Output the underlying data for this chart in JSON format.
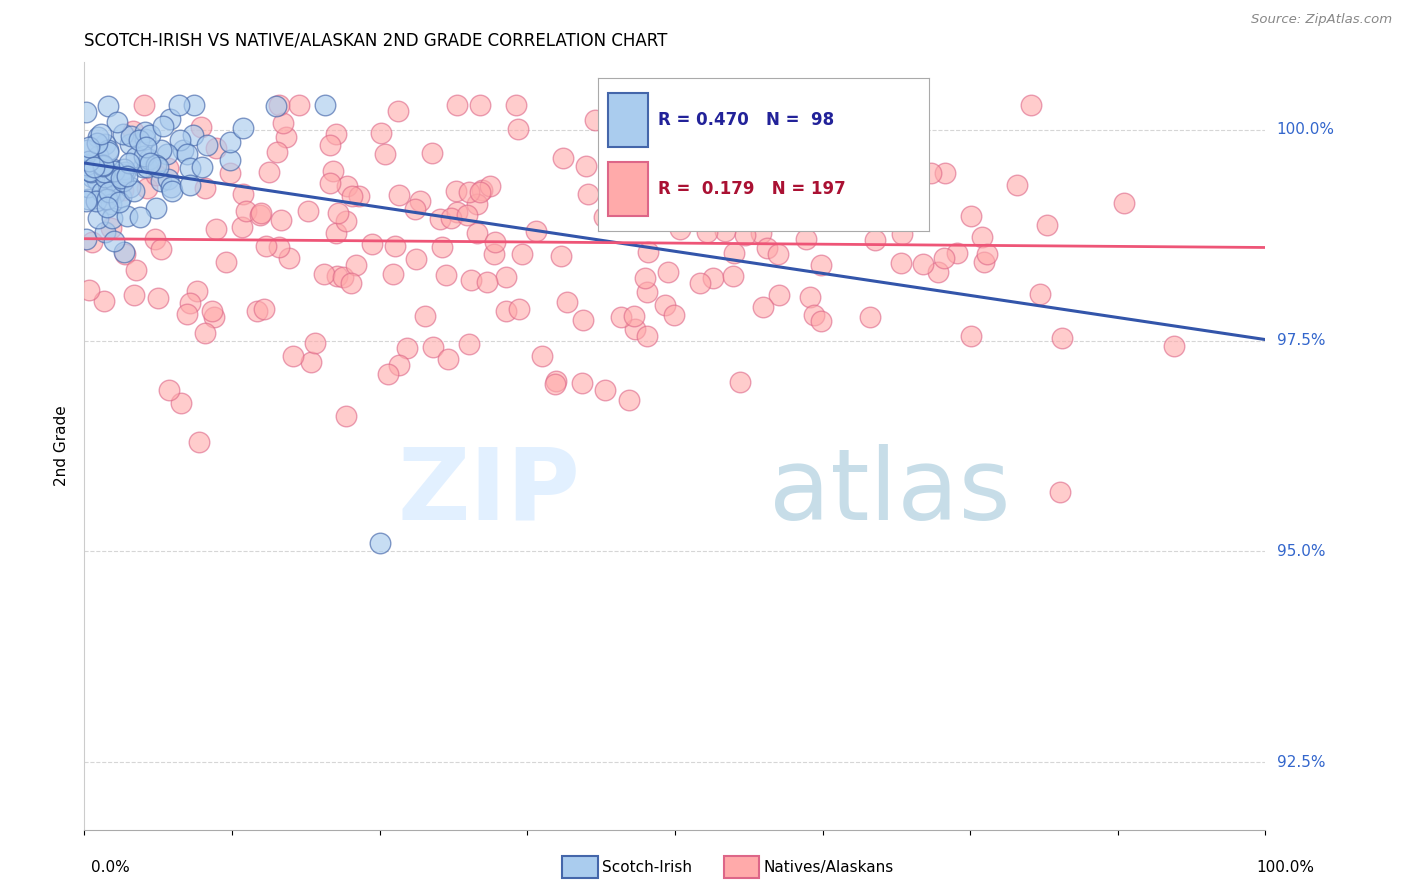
{
  "title": "SCOTCH-IRISH VS NATIVE/ALASKAN 2ND GRADE CORRELATION CHART",
  "source": "Source: ZipAtlas.com",
  "ylabel": "2nd Grade",
  "xlim": [
    0.0,
    1.0
  ],
  "ylim": [
    0.917,
    1.008
  ],
  "yticks": [
    0.925,
    0.95,
    0.975,
    1.0
  ],
  "ytick_labels": [
    "92.5%",
    "95.0%",
    "97.5%",
    "100.0%"
  ],
  "legend_blue_label": "Scotch-Irish",
  "legend_pink_label": "Natives/Alaskans",
  "blue_R": 0.47,
  "blue_N": 98,
  "pink_R": 0.179,
  "pink_N": 197,
  "blue_face_color": "#AACCEE",
  "blue_edge_color": "#4466AA",
  "pink_face_color": "#FFAAAA",
  "pink_edge_color": "#DD6688",
  "blue_line_color": "#3355AA",
  "pink_line_color": "#EE5577",
  "legend_box_color": "#AACCEE",
  "legend_pink_box_color": "#FFAAAA"
}
